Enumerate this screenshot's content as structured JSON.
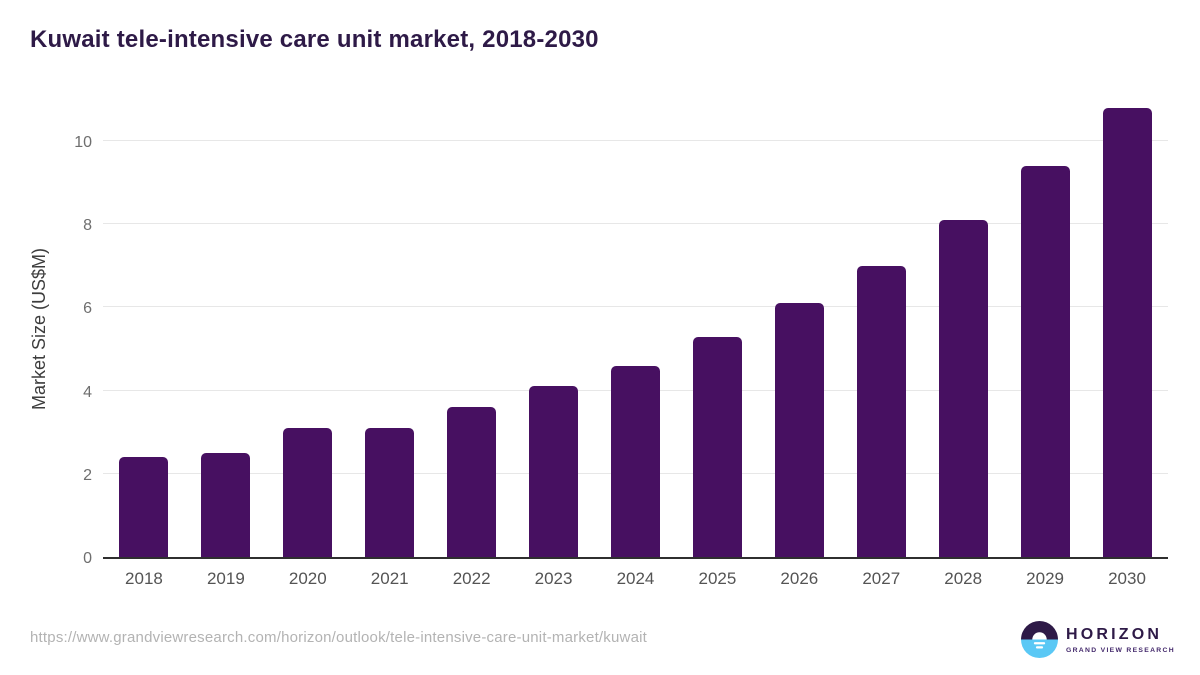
{
  "title": "Kuwait tele-intensive care unit market, 2018-2030",
  "chart_data": {
    "type": "bar",
    "categories": [
      "2018",
      "2019",
      "2020",
      "2021",
      "2022",
      "2023",
      "2024",
      "2025",
      "2026",
      "2027",
      "2028",
      "2029",
      "2030"
    ],
    "values": [
      2.4,
      2.5,
      3.1,
      3.1,
      3.6,
      4.1,
      4.6,
      5.3,
      6.1,
      7.0,
      8.1,
      9.4,
      10.8
    ],
    "title": "Kuwait tele-intensive care unit market, 2018-2030",
    "xlabel": "",
    "ylabel": "Market Size (US$M)",
    "ylim": [
      0,
      11
    ],
    "yticks": [
      0,
      2,
      4,
      6,
      8,
      10
    ],
    "grid": true,
    "legend_position": "none",
    "bar_color": "#471061"
  },
  "colors": {
    "bar": "#471061",
    "title": "#2e1a47",
    "gridline": "#e7e7e7",
    "axis_line": "#2f2f2f",
    "tick_text": "#6e6e6e",
    "logo_blue": "#5ac8f5",
    "logo_purple": "#2e1a47"
  },
  "footer": {
    "source_url": "https://www.grandviewresearch.com/horizon/outlook/tele-intensive-care-unit-market/kuwait",
    "logo": {
      "brand": "HORIZON",
      "sub_brand": "GRAND VIEW RESEARCH"
    }
  }
}
